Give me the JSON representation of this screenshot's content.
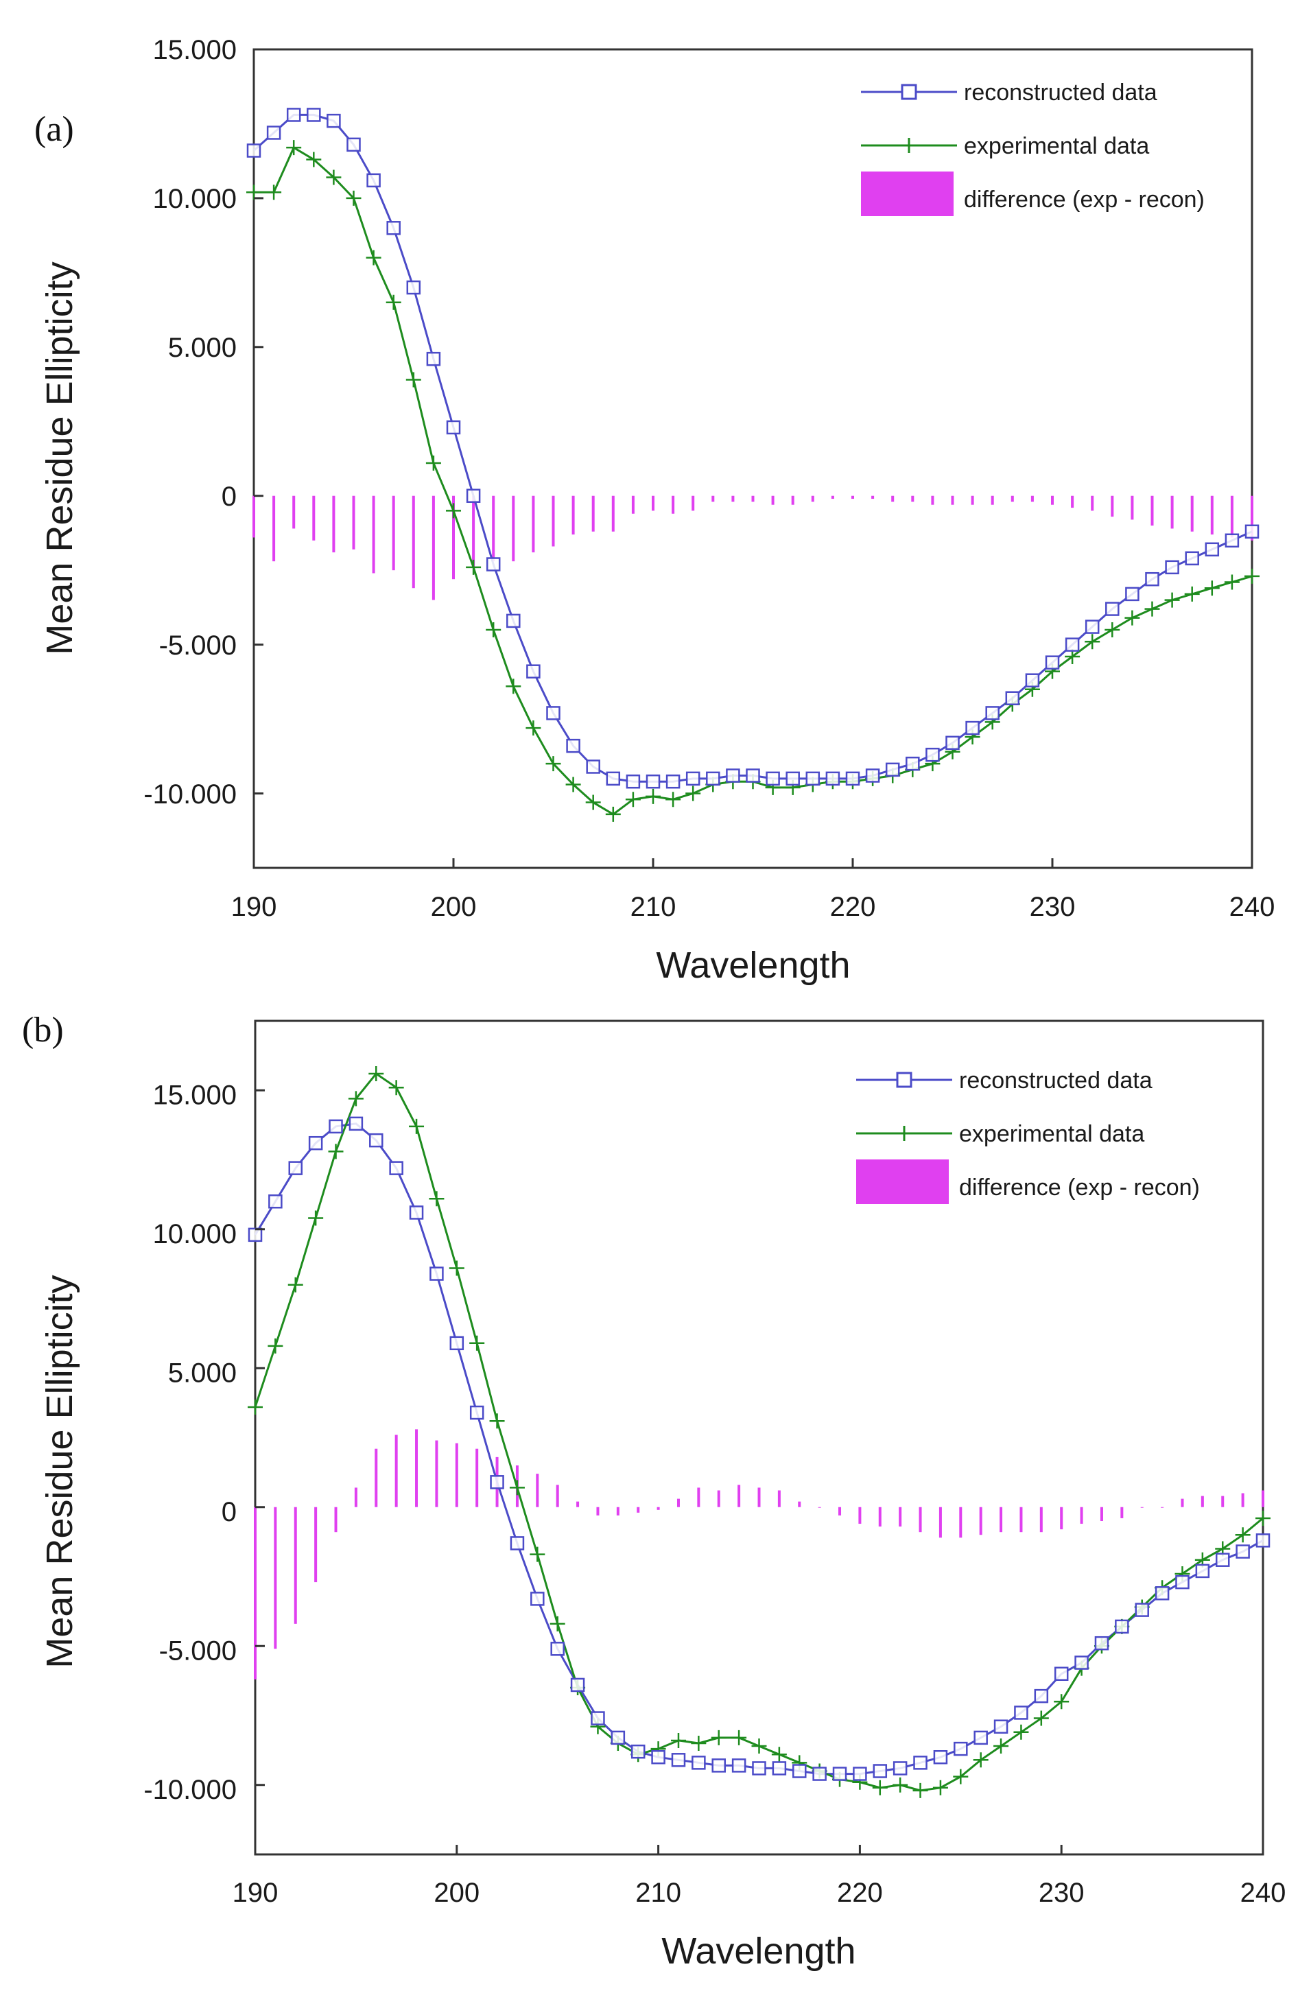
{
  "chart_data": [
    {
      "type": "line",
      "panel_label": "(a)",
      "xlabel": "Wavelength",
      "ylabel": "Mean Residue Ellipticity",
      "xlim": [
        190,
        240
      ],
      "ylim": [
        -12500,
        15000
      ],
      "x_ticks": [
        190,
        200,
        210,
        220,
        230,
        240
      ],
      "x_tick_labels": [
        "190",
        "200",
        "210",
        "220",
        "230",
        "240"
      ],
      "y_ticks": [
        15000,
        10000,
        5000,
        0,
        -5000,
        -10000
      ],
      "y_tick_labels": [
        "15.000",
        "10.000",
        "5.000",
        "0",
        "-5.000",
        "-10.000"
      ],
      "legend_position": "top-right",
      "legend": [
        "reconstructed data",
        "experimental data",
        "difference (exp - recon)"
      ],
      "colors": {
        "reconstructed": "#4b4bc8",
        "experimental": "#1e8c1e",
        "difference": "#e040f0"
      },
      "x": [
        190,
        191,
        192,
        193,
        194,
        195,
        196,
        197,
        198,
        199,
        200,
        201,
        202,
        203,
        204,
        205,
        206,
        207,
        208,
        209,
        210,
        211,
        212,
        213,
        214,
        215,
        216,
        217,
        218,
        219,
        220,
        221,
        222,
        223,
        224,
        225,
        226,
        227,
        228,
        229,
        230,
        231,
        232,
        233,
        234,
        235,
        236,
        237,
        238,
        239,
        240
      ],
      "series": [
        {
          "name": "reconstructed data",
          "values": [
            11600,
            12200,
            12800,
            12800,
            12600,
            11800,
            10600,
            9000,
            7000,
            4600,
            2300,
            0,
            -2300,
            -4200,
            -5900,
            -7300,
            -8400,
            -9100,
            -9500,
            -9600,
            -9600,
            -9600,
            -9500,
            -9500,
            -9400,
            -9400,
            -9500,
            -9500,
            -9500,
            -9500,
            -9500,
            -9400,
            -9200,
            -9000,
            -8700,
            -8300,
            -7800,
            -7300,
            -6800,
            -6200,
            -5600,
            -5000,
            -4400,
            -3800,
            -3300,
            -2800,
            -2400,
            -2100,
            -1800,
            -1500,
            -1200
          ]
        },
        {
          "name": "experimental data",
          "values": [
            10200,
            10200,
            11700,
            11300,
            10700,
            10000,
            8000,
            6500,
            3900,
            1100,
            -500,
            -2400,
            -4500,
            -6400,
            -7800,
            -9000,
            -9700,
            -10300,
            -10700,
            -10200,
            -10100,
            -10200,
            -10000,
            -9700,
            -9600,
            -9600,
            -9800,
            -9800,
            -9700,
            -9600,
            -9600,
            -9500,
            -9400,
            -9200,
            -9000,
            -8600,
            -8100,
            -7600,
            -7000,
            -6500,
            -5900,
            -5400,
            -4900,
            -4500,
            -4100,
            -3800,
            -3500,
            -3300,
            -3100,
            -2900,
            -2700
          ]
        },
        {
          "name": "difference (exp - recon)",
          "values": [
            -1400,
            -2200,
            -1100,
            -1500,
            -1900,
            -1800,
            -2600,
            -2500,
            -3100,
            -3500,
            -2800,
            -2400,
            -2200,
            -2200,
            -1900,
            -1700,
            -1300,
            -1200,
            -1200,
            -600,
            -500,
            -600,
            -500,
            -200,
            -200,
            -200,
            -300,
            -300,
            -200,
            -100,
            -100,
            -100,
            -200,
            -200,
            -300,
            -300,
            -300,
            -300,
            -200,
            -200,
            -300,
            -400,
            -500,
            -700,
            -800,
            -1000,
            -1100,
            -1200,
            -1300,
            -1400,
            -1500
          ]
        }
      ]
    },
    {
      "type": "line",
      "panel_label": "(b)",
      "xlabel": "Wavelength",
      "ylabel": "Mean Residue Ellipticity",
      "xlim": [
        190,
        240
      ],
      "ylim": [
        -12500,
        17500
      ],
      "x_ticks": [
        190,
        200,
        210,
        220,
        230,
        240
      ],
      "x_tick_labels": [
        "190",
        "200",
        "210",
        "220",
        "230",
        "240"
      ],
      "y_ticks": [
        15000,
        10000,
        5000,
        0,
        -5000,
        -10000
      ],
      "y_tick_labels": [
        "15.000",
        "10.000",
        "5.000",
        "0",
        "-5.000",
        "-10.000"
      ],
      "legend_position": "top-right",
      "legend": [
        "reconstructed data",
        "experimental data",
        "difference (exp - recon)"
      ],
      "colors": {
        "reconstructed": "#4b4bc8",
        "experimental": "#1e8c1e",
        "difference": "#e040f0"
      },
      "x": [
        190,
        191,
        192,
        193,
        194,
        195,
        196,
        197,
        198,
        199,
        200,
        201,
        202,
        203,
        204,
        205,
        206,
        207,
        208,
        209,
        210,
        211,
        212,
        213,
        214,
        215,
        216,
        217,
        218,
        219,
        220,
        221,
        222,
        223,
        224,
        225,
        226,
        227,
        228,
        229,
        230,
        231,
        232,
        233,
        234,
        235,
        236,
        237,
        238,
        239,
        240
      ],
      "series": [
        {
          "name": "reconstructed data",
          "values": [
            9800,
            11000,
            12200,
            13100,
            13700,
            13800,
            13200,
            12200,
            10600,
            8400,
            5900,
            3400,
            900,
            -1300,
            -3300,
            -5100,
            -6400,
            -7600,
            -8300,
            -8800,
            -9000,
            -9100,
            -9200,
            -9300,
            -9300,
            -9400,
            -9400,
            -9500,
            -9600,
            -9600,
            -9600,
            -9500,
            -9400,
            -9200,
            -9000,
            -8700,
            -8300,
            -7900,
            -7400,
            -6800,
            -6000,
            -5600,
            -4900,
            -4300,
            -3700,
            -3100,
            -2700,
            -2300,
            -1900,
            -1600,
            -1200
          ]
        },
        {
          "name": "experimental data",
          "values": [
            3600,
            5800,
            8000,
            10400,
            12800,
            14700,
            15600,
            15100,
            13700,
            11100,
            8600,
            5900,
            3100,
            700,
            -1700,
            -4200,
            -6500,
            -7900,
            -8500,
            -8900,
            -8700,
            -8400,
            -8500,
            -8300,
            -8300,
            -8600,
            -8900,
            -9200,
            -9500,
            -9800,
            -9900,
            -10100,
            -10000,
            -10200,
            -10100,
            -9700,
            -9100,
            -8600,
            -8100,
            -7600,
            -7000,
            -5800,
            -5000,
            -4300,
            -3600,
            -2900,
            -2400,
            -1900,
            -1500,
            -1000,
            -400
          ]
        },
        {
          "name": "difference (exp - recon)",
          "values": [
            -6200,
            -5100,
            -4200,
            -2700,
            -900,
            700,
            2100,
            2600,
            2800,
            2400,
            2300,
            2100,
            1800,
            1500,
            1200,
            800,
            200,
            -300,
            -300,
            -200,
            -100,
            300,
            700,
            600,
            800,
            700,
            600,
            200,
            0,
            -300,
            -600,
            -700,
            -700,
            -900,
            -1100,
            -1100,
            -1000,
            -900,
            -900,
            -900,
            -800,
            -600,
            -500,
            -400,
            0,
            0,
            300,
            400,
            400,
            500,
            600
          ]
        }
      ]
    }
  ]
}
